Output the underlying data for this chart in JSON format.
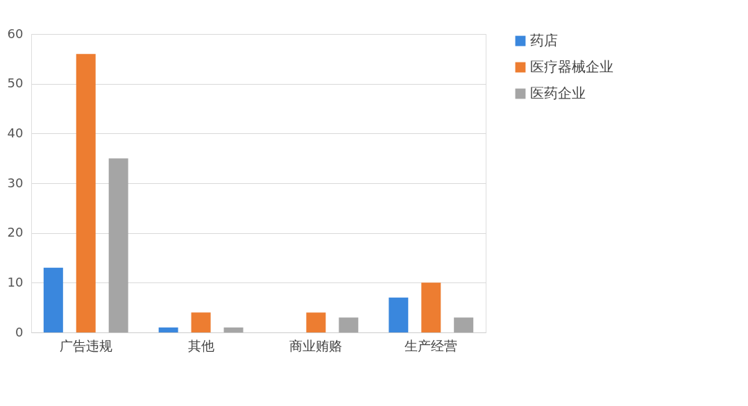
{
  "chart_data": {
    "type": "bar",
    "categories": [
      "广告违规",
      "其他",
      "商业贿赂",
      "生产经营"
    ],
    "series": [
      {
        "name": "药店",
        "color": "#3a87dd",
        "values": [
          13,
          1,
          0,
          7
        ]
      },
      {
        "name": "医疗器械企业",
        "color": "#ed7d31",
        "values": [
          56,
          4,
          4,
          10
        ]
      },
      {
        "name": "医药企业",
        "color": "#a5a5a5",
        "values": [
          35,
          1,
          3,
          3
        ]
      }
    ],
    "ylim": [
      0,
      60
    ],
    "yticks": [
      0,
      10,
      20,
      30,
      40,
      50,
      60
    ],
    "grid": "y",
    "legend": "right"
  }
}
